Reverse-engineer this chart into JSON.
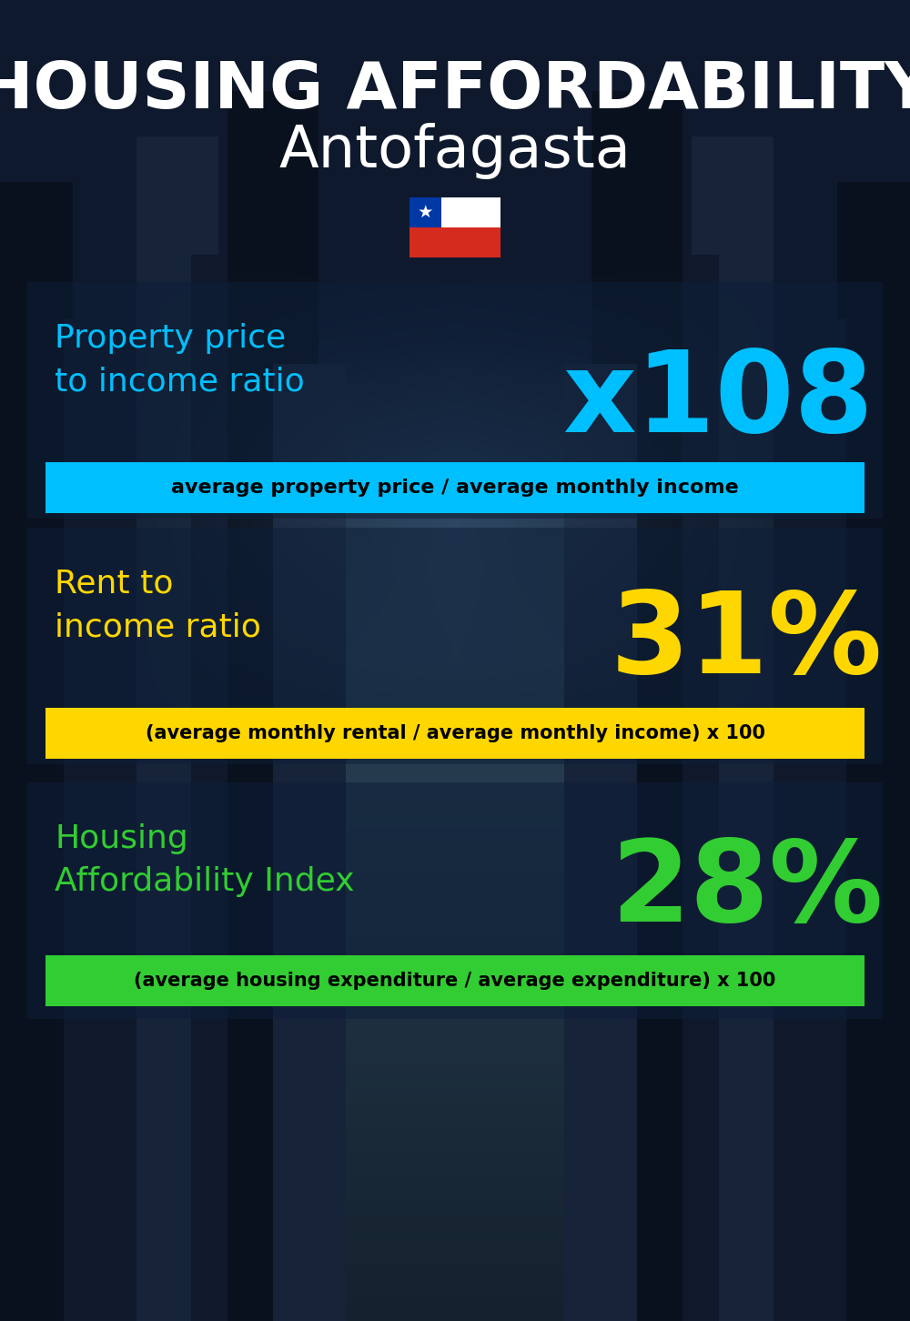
{
  "title_line1": "HOUSING AFFORDABILITY",
  "title_line2": "Antofagasta",
  "section1_label": "Property price\nto income ratio",
  "section1_value": "x108",
  "section1_label_color": "#00bfff",
  "section1_value_color": "#00bfff",
  "section1_box_text": "average property price / average monthly income",
  "section1_box_bg": "#00bfff",
  "section1_box_text_color": "#000000",
  "section2_label": "Rent to\nincome ratio",
  "section2_value": "31%",
  "section2_label_color": "#ffd700",
  "section2_value_color": "#ffd700",
  "section2_box_text": "(average monthly rental / average monthly income) x 100",
  "section2_box_bg": "#ffd700",
  "section2_box_text_color": "#000000",
  "section3_label": "Housing\nAffordability Index",
  "section3_value": "28%",
  "section3_label_color": "#32cd32",
  "section3_value_color": "#32cd32",
  "section3_box_text": "(average housing expenditure / average expenditure) x 100",
  "section3_box_bg": "#32cd32",
  "section3_box_text_color": "#000000",
  "bg_color": "#0a1525",
  "title_color": "#ffffff"
}
